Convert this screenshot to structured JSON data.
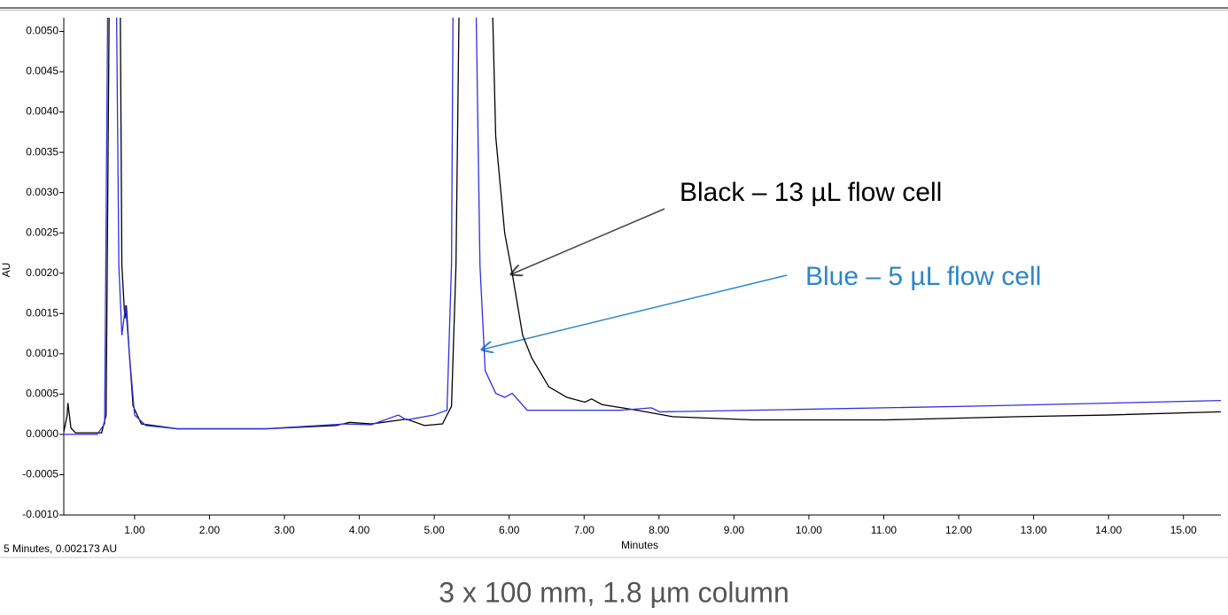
{
  "chart_data": {
    "type": "line",
    "x_label": "Minutes",
    "y_label": "AU",
    "status": "5 Minutes, 0.002173 AU",
    "caption": "3 x 100 mm, 1.8 µm column",
    "annotations": [
      {
        "text": "Black – 13 µL flow cell",
        "color": "#000000"
      },
      {
        "text": "Blue – 5 µL flow cell",
        "color": "#2e86c8"
      }
    ],
    "xlim": [
      0.055,
      15.5
    ],
    "ylim": [
      -0.001,
      0.00517
    ],
    "xticks": [
      {
        "value": 1,
        "label": "1.00"
      },
      {
        "value": 2,
        "label": "2.00"
      },
      {
        "value": 3,
        "label": "3.00"
      },
      {
        "value": 4,
        "label": "4.00"
      },
      {
        "value": 5,
        "label": "5.00"
      },
      {
        "value": 6,
        "label": "6.00"
      },
      {
        "value": 7,
        "label": "7.00"
      },
      {
        "value": 8,
        "label": "8.00"
      },
      {
        "value": 9,
        "label": "9.00"
      },
      {
        "value": 10,
        "label": "10.00"
      },
      {
        "value": 11,
        "label": "11.00"
      },
      {
        "value": 12,
        "label": "12.00"
      },
      {
        "value": 13,
        "label": "13.00"
      },
      {
        "value": 14,
        "label": "14.00"
      },
      {
        "value": 15,
        "label": "15.00"
      }
    ],
    "yticks": [
      {
        "value": -0.001,
        "label": "-0.0010"
      },
      {
        "value": -0.0005,
        "label": "-0.0005"
      },
      {
        "value": 0,
        "label": "0.0000"
      },
      {
        "value": 0.0005,
        "label": "0.0005"
      },
      {
        "value": 0.001,
        "label": "0.0010"
      },
      {
        "value": 0.0015,
        "label": "0.0015"
      },
      {
        "value": 0.002,
        "label": "0.0020"
      },
      {
        "value": 0.0025,
        "label": "0.0025"
      },
      {
        "value": 0.003,
        "label": "0.0030"
      },
      {
        "value": 0.0035,
        "label": "0.0035"
      },
      {
        "value": 0.004,
        "label": "0.0040"
      },
      {
        "value": 0.0045,
        "label": "0.0045"
      },
      {
        "value": 0.005,
        "label": "0.0050"
      }
    ],
    "series": [
      {
        "color": "#000000",
        "x": [
          0.055,
          0.1,
          0.11,
          0.15,
          0.21,
          0.56,
          0.62,
          0.66,
          0.81,
          0.83,
          0.87,
          0.89,
          0.93,
          0.98,
          1.09,
          1.57,
          2.75,
          3.69,
          3.87,
          4.16,
          4.63,
          4.87,
          5.11,
          5.23,
          5.29,
          5.33,
          5.78,
          5.82,
          5.94,
          6.04,
          6.18,
          6.3,
          6.53,
          6.77,
          7.01,
          7.1,
          7.24,
          7.71,
          8.18,
          9.25,
          11.02,
          12.79,
          13.97,
          15.5
        ],
        "values": [
          3e-05,
          0.00024,
          0.00039,
          8e-05,
          2e-05,
          2e-05,
          0.00024,
          0.0052,
          0.0052,
          0.0021,
          0.00144,
          0.0016,
          0.001,
          0.00035,
          0.00013,
          7e-05,
          7e-05,
          0.00011,
          0.00015,
          0.00013,
          0.00019,
          0.00011,
          0.00013,
          0.00035,
          0.0021,
          0.0052,
          0.0052,
          0.0037,
          0.0025,
          0.002,
          0.00123,
          0.00095,
          0.00059,
          0.00046,
          0.0004,
          0.00044,
          0.00037,
          0.0003,
          0.00022,
          0.00018,
          0.00018,
          0.00022,
          0.00024,
          0.00028
        ]
      },
      {
        "color": "#2f2fe0",
        "x": [
          0.055,
          0.5,
          0.6,
          0.64,
          0.76,
          0.79,
          0.83,
          0.88,
          0.93,
          1.0,
          1.15,
          1.57,
          2.75,
          3.81,
          4.16,
          4.52,
          4.63,
          4.99,
          5.17,
          5.23,
          5.25,
          5.56,
          5.61,
          5.68,
          5.82,
          5.94,
          6.04,
          6.24,
          7.48,
          7.9,
          8.01,
          9.84,
          12.2,
          15.5
        ],
        "values": [
          0,
          0,
          0.00013,
          0.0052,
          0.0052,
          0.0021,
          0.00123,
          0.0016,
          0.001,
          0.00024,
          0.00011,
          7e-05,
          7e-05,
          0.00013,
          0.00012,
          0.00024,
          0.00018,
          0.00024,
          0.0003,
          0.0021,
          0.0052,
          0.0052,
          0.0021,
          0.00079,
          0.00051,
          0.00046,
          0.00051,
          0.0003,
          0.0003,
          0.00033,
          0.00028,
          0.00031,
          0.00035,
          0.00042
        ]
      }
    ]
  }
}
